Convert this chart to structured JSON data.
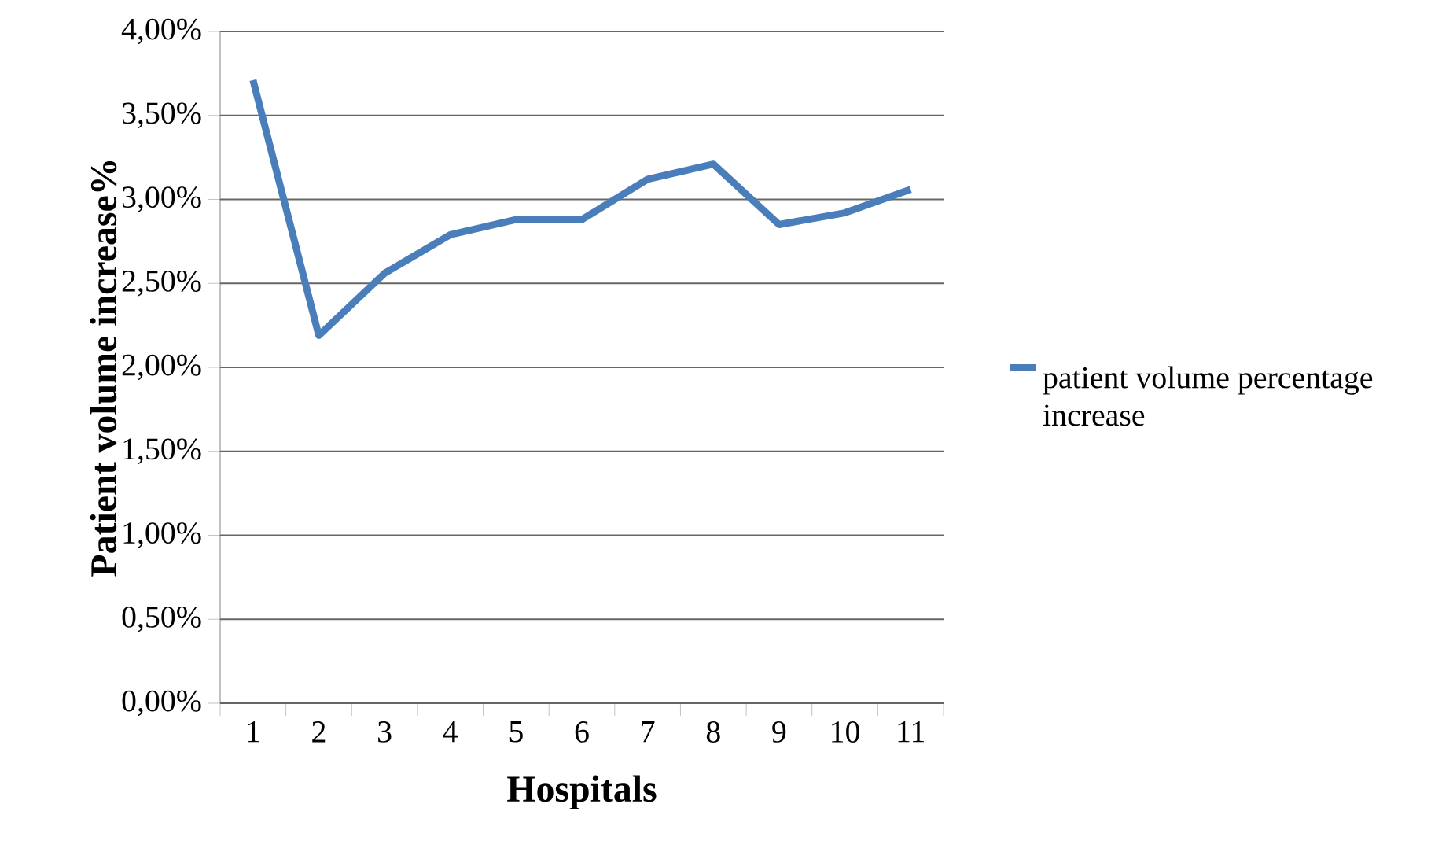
{
  "chart_data": {
    "type": "line",
    "xlabel": "Hospitals",
    "ylabel": "Patient volume increase%",
    "categories": [
      "1",
      "2",
      "3",
      "4",
      "5",
      "6",
      "7",
      "8",
      "9",
      "10",
      "11"
    ],
    "series": [
      {
        "name": "patient volume percentage increase",
        "color": "#4a7ebb",
        "values": [
          3.71,
          2.19,
          2.56,
          2.79,
          2.88,
          2.88,
          3.12,
          3.21,
          2.85,
          2.92,
          3.06
        ]
      }
    ],
    "ylim": [
      0,
      4
    ],
    "yticks": [
      {
        "value": 0,
        "label": "0,00%"
      },
      {
        "value": 0.5,
        "label": "0,50%"
      },
      {
        "value": 1,
        "label": "1,00%"
      },
      {
        "value": 1.5,
        "label": "1,50%"
      },
      {
        "value": 2,
        "label": "2,00%"
      },
      {
        "value": 2.5,
        "label": "2,50%"
      },
      {
        "value": 3,
        "label": "3,00%"
      },
      {
        "value": 3.5,
        "label": "3,50%"
      },
      {
        "value": 4,
        "label": "4,00%"
      }
    ],
    "grid": "y",
    "legend": "right",
    "marker": "none",
    "line_style": "solid"
  }
}
